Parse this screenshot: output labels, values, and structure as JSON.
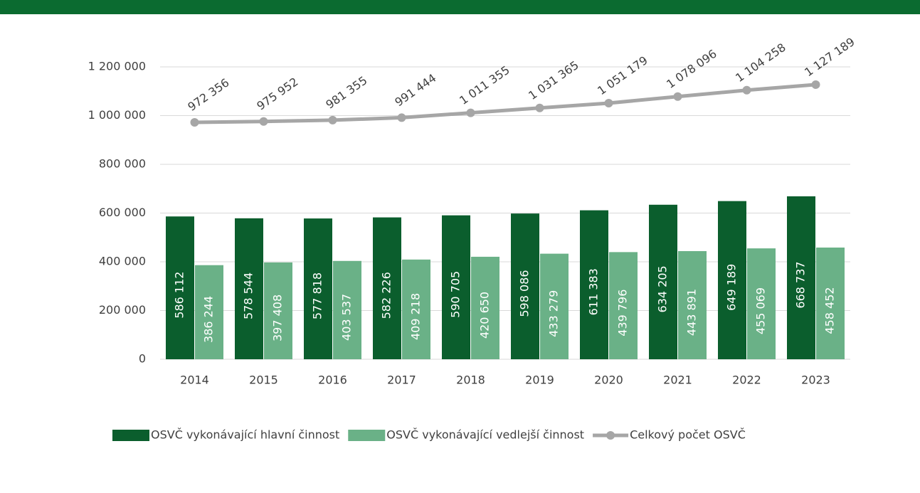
{
  "chart_data": {
    "type": "bar",
    "categories": [
      "2014",
      "2015",
      "2016",
      "2017",
      "2018",
      "2019",
      "2020",
      "2021",
      "2022",
      "2023"
    ],
    "series": [
      {
        "name": "OSVČ vykonávající hlavní činnost",
        "color": "#0b5e2d",
        "type": "bar",
        "values": [
          586112,
          578544,
          577818,
          582226,
          590705,
          598086,
          611383,
          634205,
          649189,
          668737
        ],
        "value_labels": [
          "586 112",
          "578 544",
          "577 818",
          "582 226",
          "590 705",
          "598 086",
          "611 383",
          "634 205",
          "649 189",
          "668 737"
        ]
      },
      {
        "name": "OSVČ vykonávající vedlejší činnost",
        "color": "#6ab187",
        "type": "bar",
        "values": [
          386244,
          397408,
          403537,
          409218,
          420650,
          433279,
          439796,
          443891,
          455069,
          458452
        ],
        "value_labels": [
          "386 244",
          "397 408",
          "403 537",
          "409 218",
          "420 650",
          "433 279",
          "439 796",
          "443 891",
          "455 069",
          "458 452"
        ]
      },
      {
        "name": "Celkový počet OSVČ",
        "color": "#a6a6a6",
        "type": "line",
        "values": [
          972356,
          975952,
          981355,
          991444,
          1011355,
          1031365,
          1051179,
          1078096,
          1104258,
          1127189
        ],
        "value_labels": [
          "972 356",
          "975 952",
          "981 355",
          "991 444",
          "1 011 355",
          "1 031 365",
          "1 051 179",
          "1 078 096",
          "1 104 258",
          "1 127 189"
        ]
      }
    ],
    "ylim": [
      0,
      1200000
    ],
    "yticks": [
      0,
      {
        "value": 200000,
        "label": "200 000"
      },
      {
        "value": 400000,
        "label": "400 000"
      },
      {
        "value": 600000,
        "label": "600 000"
      },
      {
        "value": 800000,
        "label": "800 000"
      },
      {
        "value": 1000000,
        "label": "1 000 000"
      },
      {
        "value": 1200000,
        "label": "1 200 000"
      }
    ],
    "grid": true,
    "legend": "bottom"
  }
}
